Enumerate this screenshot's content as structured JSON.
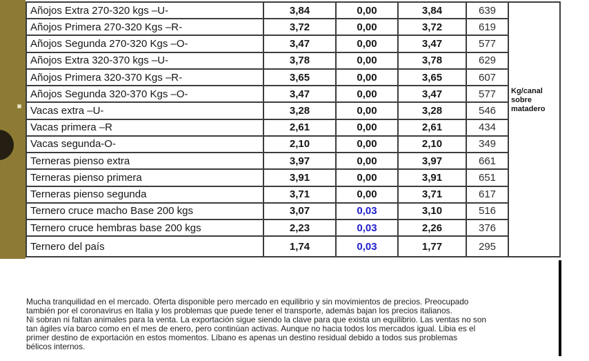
{
  "table": {
    "unit_note": "Kg/canal sobre matadero",
    "rows": [
      {
        "name": "Añojos Extra 270-320 kgs –U-",
        "price": "3,84",
        "change": "0,00",
        "total": "3,84",
        "kg": "639",
        "change_color": null
      },
      {
        "name": "Añojos Primera 270-320 Kgs –R-",
        "price": "3,72",
        "change": "0,00",
        "total": "3,72",
        "kg": "619",
        "change_color": null
      },
      {
        "name": "Añojos Segunda 270-320 Kgs –O-",
        "price": "3,47",
        "change": "0,00",
        "total": "3,47",
        "kg": "577",
        "change_color": null
      },
      {
        "name": "Añojos Extra 320-370 kgs –U-",
        "price": "3,78",
        "change": "0,00",
        "total": "3,78",
        "kg": "629",
        "change_color": null
      },
      {
        "name": "Añojos Primera 320-370 Kgs –R-",
        "price": "3,65",
        "change": "0,00",
        "total": "3,65",
        "kg": "607",
        "change_color": null
      },
      {
        "name": "Añojos Segunda 320-370 Kgs –O-",
        "price": "3,47",
        "change": "0,00",
        "total": "3,47",
        "kg": "577",
        "change_color": null
      },
      {
        "name": "Vacas extra –U-",
        "price": "3,28",
        "change": "0,00",
        "total": "3,28",
        "kg": "546",
        "change_color": null
      },
      {
        "name": "Vacas primera –R",
        "price": "2,61",
        "change": "0,00",
        "total": "2,61",
        "kg": "434",
        "change_color": null
      },
      {
        "name": "Vacas segunda-O-",
        "price": "2,10",
        "change": "0,00",
        "total": "2,10",
        "kg": "349",
        "change_color": null
      },
      {
        "name": "Terneras pienso extra",
        "price": "3,97",
        "change": "0,00",
        "total": "3,97",
        "kg": "661",
        "change_color": null
      },
      {
        "name": "Terneras pienso primera",
        "price": "3,91",
        "change": "0,00",
        "total": "3,91",
        "kg": "651",
        "change_color": null
      },
      {
        "name": "Terneras pienso segunda",
        "price": "3,71",
        "change": "0,00",
        "total": "3,71",
        "kg": "617",
        "change_color": null
      },
      {
        "name": "Ternero cruce macho Base 200 kgs",
        "price": "3,07",
        "change": "0,03",
        "total": "3,10",
        "kg": "516",
        "change_color": "#2020cc"
      },
      {
        "name": "Ternero cruce hembras base 200 kgs",
        "price": "2,23",
        "change": "0,03",
        "total": "2,26",
        "kg": "376",
        "change_color": "#2020cc"
      },
      {
        "name": "Ternero del país",
        "price": "1,74",
        "change": "0,03",
        "total": "1,77",
        "kg": "295",
        "change_color": "#2020cc"
      }
    ]
  },
  "commentary": {
    "lines": [
      {
        "text": "Mucha tranquilidad en el mercado. Oferta disponible pero mercado en equilibrio y sin movimientos de precios. Preocupado"
      },
      {
        "text": "también por el coronavirus en Italia y los problemas que puede tener el transporte, además bajan los precios italianos."
      },
      {
        "text": "Ni sobran ni faltan animales para la venta. La exportación sigue siendo la clave para que exista un equilibrio. Las ventas no son"
      },
      {
        "text": "tan ágiles vía barco como en el mes de enero, pero continúan activas. Aunque no hacia todos los mercados igual. Libia es el"
      },
      {
        "text": "primer destino de exportación en estos momentos. Líbano es apenas un destino residual debido a todos sus problemas"
      },
      {
        "text": "bélicos internos."
      }
    ]
  },
  "colors": {
    "sidebar_olive": "#8d7b35",
    "change_highlight_blue": "#2020cc",
    "table_border": "#3c3c3c"
  }
}
